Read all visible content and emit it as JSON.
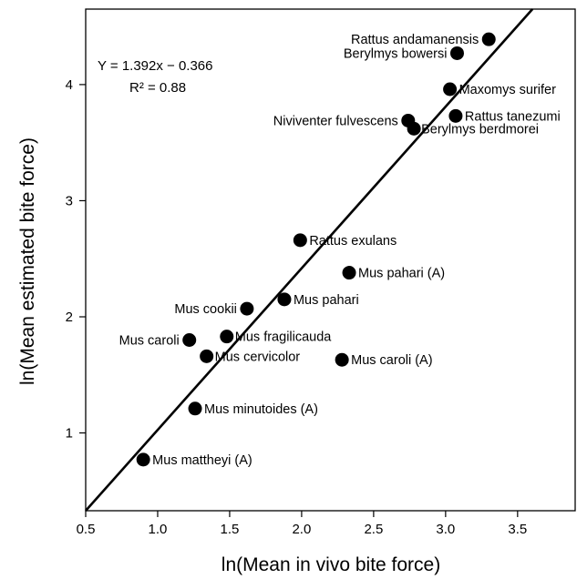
{
  "chart_data": {
    "type": "scatter",
    "title": "",
    "xlabel": "ln(Mean in vivo bite force)",
    "ylabel": "ln(Mean estimated bite force)",
    "xlim": [
      0.5,
      3.9
    ],
    "ylim": [
      0.33,
      4.65
    ],
    "xticks": [
      0.5,
      1.0,
      1.5,
      2.0,
      2.5,
      3.0,
      3.5
    ],
    "xtick_labels": [
      "0.5",
      "1.0",
      "1.5",
      "2.0",
      "2.5",
      "3.0",
      "3.5"
    ],
    "yticks": [
      1,
      2,
      3,
      4
    ],
    "ytick_labels": [
      "1",
      "2",
      "3",
      "4"
    ],
    "grid": false,
    "regression": {
      "slope": 1.392,
      "intercept": -0.366
    },
    "annotations": [
      "Y = 1.392x − 0.366",
      "R² = 0.88"
    ],
    "points": [
      {
        "label": "Rattus andamanensis",
        "x": 3.3,
        "y": 4.39
      },
      {
        "label": "Berylmys bowersi",
        "x": 3.08,
        "y": 4.27
      },
      {
        "label": "Maxomys surifer",
        "x": 3.03,
        "y": 3.96
      },
      {
        "label": "Rattus tanezumi",
        "x": 3.07,
        "y": 3.73
      },
      {
        "label": "Niviventer fulvescens",
        "x": 2.74,
        "y": 3.69
      },
      {
        "label": "Berylmys berdmorei",
        "x": 2.78,
        "y": 3.62
      },
      {
        "label": "Rattus exulans",
        "x": 1.99,
        "y": 2.66
      },
      {
        "label": "Mus pahari (A)",
        "x": 2.33,
        "y": 2.38
      },
      {
        "label": "Mus pahari",
        "x": 1.88,
        "y": 2.15
      },
      {
        "label": "Mus cookii",
        "x": 1.62,
        "y": 2.07
      },
      {
        "label": "Mus fragilicauda",
        "x": 1.48,
        "y": 1.83
      },
      {
        "label": "Mus caroli",
        "x": 1.22,
        "y": 1.8
      },
      {
        "label": "Mus cervicolor",
        "x": 1.34,
        "y": 1.66
      },
      {
        "label": "Mus caroli (A)",
        "x": 2.28,
        "y": 1.63
      },
      {
        "label": "Mus minutoides (A)",
        "x": 1.26,
        "y": 1.21
      },
      {
        "label": "Mus mattheyi (A)",
        "x": 0.9,
        "y": 0.77
      }
    ]
  }
}
